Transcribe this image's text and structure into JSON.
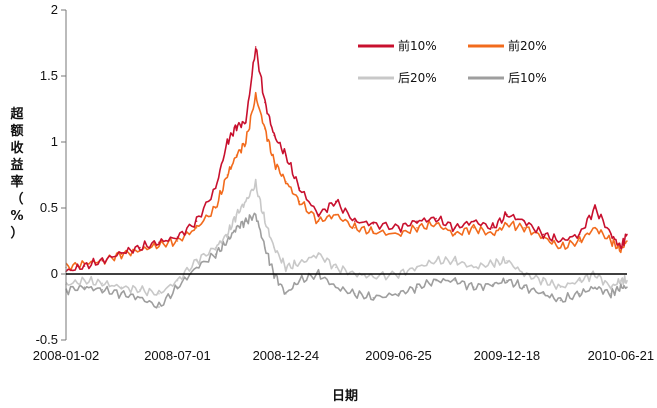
{
  "chart_data": {
    "type": "line",
    "xlabel": "日期",
    "ylabel": "超额收益率（%）",
    "ylim": [
      -0.5,
      2
    ],
    "yticks": [
      "-0.5",
      "0",
      "0.5",
      "1",
      "1.5",
      "2"
    ],
    "x_range": [
      "2008-01-02",
      "2010-07-01"
    ],
    "x_tick_labels": [
      "2008-01-02",
      "2008-07-01",
      "2008-12-24",
      "2009-06-25",
      "2009-12-18",
      "2010-06-21"
    ],
    "zero_line": true,
    "grid": false,
    "legend_position": "top-right",
    "series": [
      {
        "name": "前10%",
        "color": "#c8102e",
        "x": [
          "2008-01-02",
          "2008-02-01",
          "2008-03-01",
          "2008-04-01",
          "2008-05-01",
          "2008-06-01",
          "2008-07-01",
          "2008-08-01",
          "2008-09-01",
          "2008-09-20",
          "2008-10-05",
          "2008-10-20",
          "2008-11-05",
          "2008-11-20",
          "2008-12-05",
          "2008-12-24",
          "2009-01-15",
          "2009-02-15",
          "2009-03-15",
          "2009-04-15",
          "2009-05-15",
          "2009-06-25",
          "2009-07-25",
          "2009-08-25",
          "2009-09-25",
          "2009-10-25",
          "2009-11-25",
          "2009-12-18",
          "2010-01-15",
          "2010-02-15",
          "2010-03-15",
          "2010-04-15",
          "2010-05-10",
          "2010-06-05",
          "2010-06-21",
          "2010-07-01"
        ],
        "values": [
          0.02,
          0.06,
          0.1,
          0.16,
          0.2,
          0.24,
          0.28,
          0.4,
          0.65,
          1.0,
          1.12,
          1.15,
          1.72,
          1.3,
          1.05,
          0.9,
          0.65,
          0.45,
          0.55,
          0.4,
          0.38,
          0.35,
          0.4,
          0.42,
          0.35,
          0.4,
          0.35,
          0.45,
          0.4,
          0.3,
          0.25,
          0.3,
          0.5,
          0.3,
          0.2,
          0.3
        ]
      },
      {
        "name": "前20%",
        "color": "#f26b1d",
        "x": [
          "2008-01-02",
          "2008-02-01",
          "2008-03-01",
          "2008-04-01",
          "2008-05-01",
          "2008-06-01",
          "2008-07-01",
          "2008-08-01",
          "2008-09-01",
          "2008-09-20",
          "2008-10-05",
          "2008-10-20",
          "2008-11-05",
          "2008-11-20",
          "2008-12-05",
          "2008-12-24",
          "2009-01-15",
          "2009-02-15",
          "2009-03-15",
          "2009-04-15",
          "2009-05-15",
          "2009-06-25",
          "2009-07-25",
          "2009-08-25",
          "2009-09-25",
          "2009-10-25",
          "2009-11-25",
          "2009-12-18",
          "2010-01-15",
          "2010-02-15",
          "2010-03-15",
          "2010-04-15",
          "2010-05-10",
          "2010-06-05",
          "2010-06-21",
          "2010-07-01"
        ],
        "values": [
          0.05,
          0.08,
          0.1,
          0.15,
          0.18,
          0.22,
          0.25,
          0.35,
          0.5,
          0.75,
          0.9,
          1.0,
          1.35,
          1.1,
          0.85,
          0.7,
          0.55,
          0.4,
          0.45,
          0.35,
          0.32,
          0.3,
          0.35,
          0.38,
          0.3,
          0.35,
          0.3,
          0.38,
          0.35,
          0.28,
          0.2,
          0.25,
          0.35,
          0.25,
          0.18,
          0.25
        ]
      },
      {
        "name": "后20%",
        "color": "#c8c8c8",
        "x": [
          "2008-01-02",
          "2008-02-01",
          "2008-03-01",
          "2008-04-01",
          "2008-05-01",
          "2008-06-01",
          "2008-07-01",
          "2008-08-01",
          "2008-09-01",
          "2008-09-20",
          "2008-10-05",
          "2008-10-20",
          "2008-11-05",
          "2008-11-20",
          "2008-12-05",
          "2008-12-24",
          "2009-01-15",
          "2009-02-15",
          "2009-03-15",
          "2009-04-15",
          "2009-05-15",
          "2009-06-25",
          "2009-07-25",
          "2009-08-25",
          "2009-09-25",
          "2009-10-25",
          "2009-11-25",
          "2009-12-18",
          "2010-01-15",
          "2010-02-15",
          "2010-03-15",
          "2010-04-15",
          "2010-05-10",
          "2010-06-05",
          "2010-06-21",
          "2010-07-01"
        ],
        "values": [
          -0.08,
          -0.05,
          -0.07,
          -0.1,
          -0.12,
          -0.15,
          -0.05,
          0.1,
          0.2,
          0.3,
          0.45,
          0.55,
          0.68,
          0.4,
          0.2,
          0.05,
          0.08,
          0.15,
          0.05,
          0.0,
          -0.02,
          0.0,
          0.05,
          0.1,
          0.1,
          0.05,
          0.08,
          0.1,
          0.0,
          -0.05,
          -0.1,
          -0.05,
          0.0,
          -0.1,
          -0.05,
          -0.05
        ]
      },
      {
        "name": "后10%",
        "color": "#9e9e9e",
        "x": [
          "2008-01-02",
          "2008-02-01",
          "2008-03-01",
          "2008-04-01",
          "2008-05-01",
          "2008-06-01",
          "2008-07-01",
          "2008-08-01",
          "2008-09-01",
          "2008-09-20",
          "2008-10-05",
          "2008-10-20",
          "2008-11-05",
          "2008-11-20",
          "2008-12-05",
          "2008-12-24",
          "2009-01-15",
          "2009-02-15",
          "2009-03-15",
          "2009-04-15",
          "2009-05-15",
          "2009-06-25",
          "2009-07-25",
          "2009-08-25",
          "2009-09-25",
          "2009-10-25",
          "2009-11-25",
          "2009-12-18",
          "2010-01-15",
          "2010-02-15",
          "2010-03-15",
          "2010-04-15",
          "2010-05-10",
          "2010-06-05",
          "2010-06-21",
          "2010-07-01"
        ],
        "values": [
          -0.12,
          -0.1,
          -0.12,
          -0.15,
          -0.18,
          -0.25,
          -0.1,
          0.05,
          0.15,
          0.25,
          0.35,
          0.4,
          0.45,
          0.2,
          0.0,
          -0.15,
          -0.05,
          0.0,
          -0.1,
          -0.15,
          -0.18,
          -0.15,
          -0.1,
          -0.05,
          -0.05,
          -0.1,
          -0.08,
          -0.05,
          -0.1,
          -0.15,
          -0.2,
          -0.15,
          -0.1,
          -0.15,
          -0.1,
          -0.1
        ]
      }
    ]
  }
}
